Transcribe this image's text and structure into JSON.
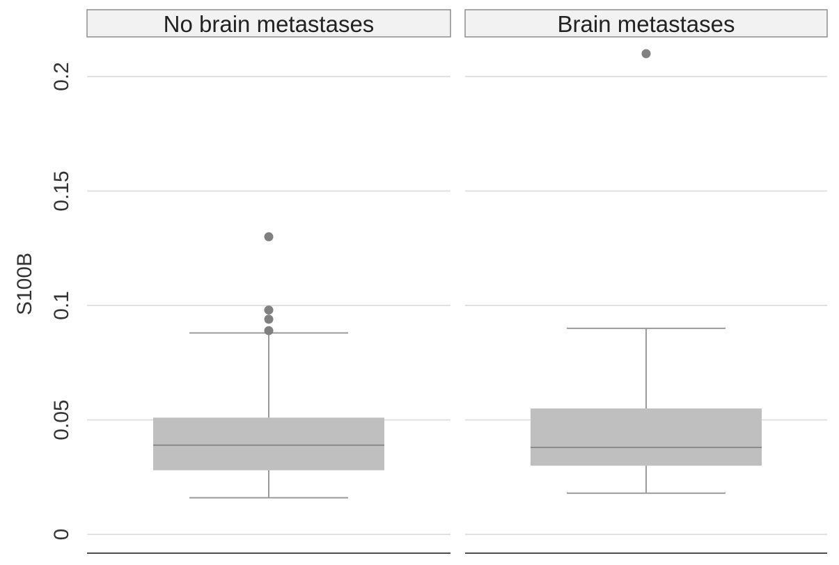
{
  "chart_data": {
    "type": "box",
    "ylabel": "S100B",
    "ylim": [
      0,
      0.22
    ],
    "yticks": [
      0,
      0.05,
      0.1,
      0.15,
      0.2
    ],
    "ytick_labels": [
      "0",
      "0.05",
      "0.1",
      "0.15",
      "0.2"
    ],
    "grid": true,
    "panels": [
      {
        "title": "No brain metastases",
        "q1": 0.028,
        "median": 0.039,
        "q3": 0.051,
        "whisker_low": 0.016,
        "whisker_high": 0.088,
        "outliers": [
          0.089,
          0.094,
          0.098,
          0.13
        ]
      },
      {
        "title": "Brain metastases",
        "q1": 0.03,
        "median": 0.038,
        "q3": 0.055,
        "whisker_low": 0.018,
        "whisker_high": 0.09,
        "outliers": [
          0.21
        ]
      }
    ],
    "colors": {
      "box": "#bfbfbf",
      "median": "#8a8a8a",
      "whisker": "#9a9a9a",
      "outlier": "#808080",
      "strip": "#f2f2f2",
      "grid": "#e1e1e1"
    }
  }
}
